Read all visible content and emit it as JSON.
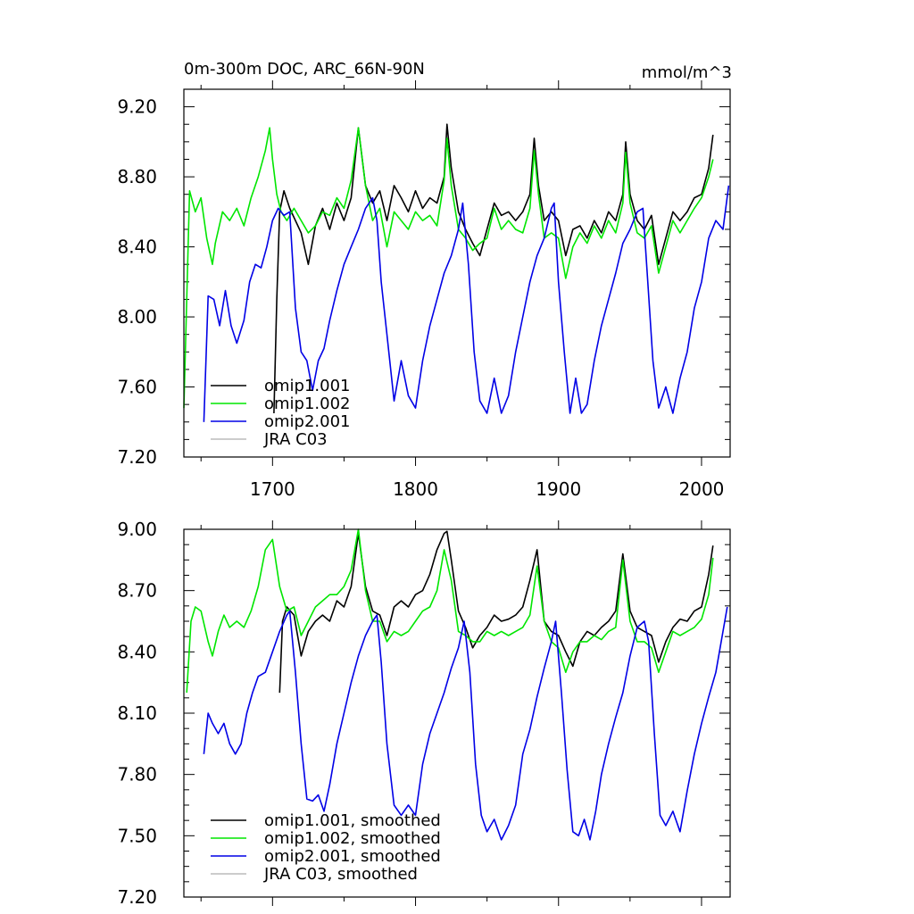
{
  "chart_data": [
    {
      "type": "line",
      "title": "0m-300m DOC, ARC_66N-90N",
      "units": "mmol/m^3",
      "xlabel": "",
      "ylabel": "",
      "xlim": [
        1638,
        2020
      ],
      "ylim": [
        7.2,
        9.3
      ],
      "xticks": [
        "1700",
        "1800",
        "1900",
        "2000"
      ],
      "yticks": [
        "7.20",
        "7.60",
        "8.00",
        "8.40",
        "8.80",
        "9.20"
      ],
      "legend_position": "bottom-left",
      "series": [
        {
          "name": "omip1.001",
          "color": "#000000",
          "x": [
            1701,
            1703,
            1705,
            1708,
            1712,
            1716,
            1720,
            1725,
            1730,
            1735,
            1740,
            1745,
            1750,
            1755,
            1760,
            1765,
            1770,
            1775,
            1780,
            1785,
            1790,
            1795,
            1800,
            1805,
            1810,
            1815,
            1820,
            1822,
            1825,
            1830,
            1835,
            1840,
            1845,
            1850,
            1855,
            1860,
            1865,
            1870,
            1875,
            1880,
            1883,
            1886,
            1890,
            1895,
            1900,
            1905,
            1910,
            1915,
            1920,
            1925,
            1930,
            1935,
            1940,
            1945,
            1947,
            1950,
            1955,
            1960,
            1965,
            1970,
            1975,
            1980,
            1985,
            1990,
            1995,
            2000,
            2005,
            2008
          ],
          "values": [
            7.45,
            8.1,
            8.6,
            8.72,
            8.62,
            8.55,
            8.48,
            8.3,
            8.52,
            8.62,
            8.5,
            8.65,
            8.55,
            8.68,
            9.08,
            8.75,
            8.65,
            8.72,
            8.55,
            8.75,
            8.68,
            8.6,
            8.72,
            8.62,
            8.68,
            8.65,
            8.8,
            9.1,
            8.85,
            8.6,
            8.5,
            8.42,
            8.35,
            8.5,
            8.65,
            8.58,
            8.6,
            8.55,
            8.6,
            8.7,
            9.02,
            8.75,
            8.55,
            8.6,
            8.55,
            8.35,
            8.5,
            8.52,
            8.45,
            8.55,
            8.48,
            8.6,
            8.55,
            8.7,
            9.0,
            8.7,
            8.55,
            8.5,
            8.58,
            8.3,
            8.45,
            8.6,
            8.55,
            8.6,
            8.68,
            8.7,
            8.85,
            9.04
          ]
        },
        {
          "name": "omip1.002",
          "color": "#00e600",
          "x": [
            1638,
            1642,
            1646,
            1650,
            1654,
            1658,
            1660,
            1665,
            1670,
            1675,
            1680,
            1685,
            1690,
            1695,
            1698,
            1700,
            1703,
            1706,
            1710,
            1715,
            1720,
            1725,
            1730,
            1735,
            1740,
            1745,
            1750,
            1755,
            1760,
            1765,
            1770,
            1775,
            1780,
            1785,
            1790,
            1795,
            1800,
            1805,
            1810,
            1815,
            1820,
            1822,
            1825,
            1830,
            1835,
            1840,
            1845,
            1850,
            1855,
            1860,
            1865,
            1870,
            1875,
            1880,
            1883,
            1886,
            1890,
            1895,
            1900,
            1905,
            1910,
            1915,
            1920,
            1925,
            1930,
            1935,
            1940,
            1945,
            1947,
            1950,
            1955,
            1960,
            1965,
            1970,
            1975,
            1980,
            1985,
            1990,
            1995,
            2000,
            2005,
            2008
          ],
          "values": [
            7.48,
            8.72,
            8.6,
            8.68,
            8.45,
            8.3,
            8.42,
            8.6,
            8.55,
            8.62,
            8.52,
            8.68,
            8.8,
            8.95,
            9.08,
            8.9,
            8.7,
            8.6,
            8.55,
            8.62,
            8.55,
            8.48,
            8.52,
            8.6,
            8.58,
            8.68,
            8.62,
            8.78,
            9.08,
            8.75,
            8.55,
            8.62,
            8.4,
            8.6,
            8.55,
            8.5,
            8.6,
            8.55,
            8.58,
            8.52,
            8.78,
            9.02,
            8.75,
            8.5,
            8.45,
            8.38,
            8.42,
            8.45,
            8.62,
            8.5,
            8.55,
            8.5,
            8.48,
            8.62,
            8.95,
            8.7,
            8.45,
            8.48,
            8.45,
            8.22,
            8.4,
            8.48,
            8.42,
            8.52,
            8.45,
            8.55,
            8.48,
            8.65,
            8.94,
            8.65,
            8.48,
            8.45,
            8.52,
            8.25,
            8.4,
            8.55,
            8.48,
            8.55,
            8.62,
            8.68,
            8.8,
            8.9
          ]
        },
        {
          "name": "omip2.001",
          "color": "#0000e6",
          "x": [
            1652,
            1655,
            1659,
            1663,
            1667,
            1671,
            1675,
            1680,
            1684,
            1688,
            1692,
            1696,
            1700,
            1704,
            1708,
            1712,
            1716,
            1720,
            1724,
            1728,
            1732,
            1736,
            1740,
            1745,
            1750,
            1755,
            1760,
            1765,
            1770,
            1773,
            1776,
            1780,
            1785,
            1790,
            1795,
            1800,
            1805,
            1810,
            1815,
            1820,
            1825,
            1830,
            1833,
            1837,
            1841,
            1845,
            1850,
            1855,
            1860,
            1865,
            1870,
            1875,
            1880,
            1885,
            1890,
            1895,
            1897,
            1900,
            1904,
            1908,
            1912,
            1916,
            1920,
            1925,
            1930,
            1935,
            1940,
            1945,
            1950,
            1955,
            1959,
            1962,
            1966,
            1970,
            1975,
            1980,
            1985,
            1990,
            1995,
            2000,
            2005,
            2010,
            2015,
            2019
          ],
          "values": [
            7.4,
            8.12,
            8.1,
            7.95,
            8.15,
            7.95,
            7.85,
            7.98,
            8.2,
            8.3,
            8.28,
            8.4,
            8.55,
            8.62,
            8.58,
            8.6,
            8.05,
            7.8,
            7.75,
            7.58,
            7.75,
            7.82,
            7.98,
            8.15,
            8.3,
            8.4,
            8.5,
            8.62,
            8.68,
            8.55,
            8.2,
            7.9,
            7.52,
            7.75,
            7.55,
            7.48,
            7.75,
            7.95,
            8.1,
            8.25,
            8.35,
            8.5,
            8.65,
            8.3,
            7.8,
            7.52,
            7.45,
            7.65,
            7.45,
            7.55,
            7.8,
            8.0,
            8.2,
            8.35,
            8.45,
            8.62,
            8.65,
            8.2,
            7.8,
            7.45,
            7.65,
            7.45,
            7.5,
            7.75,
            7.95,
            8.1,
            8.25,
            8.42,
            8.5,
            8.6,
            8.62,
            8.25,
            7.75,
            7.48,
            7.6,
            7.45,
            7.65,
            7.8,
            8.05,
            8.2,
            8.45,
            8.55,
            8.5,
            8.75
          ]
        },
        {
          "name": "JRA C03",
          "color": "#bbbbbb",
          "x": [],
          "values": []
        }
      ]
    },
    {
      "type": "line",
      "title": "",
      "xlabel": "",
      "ylabel": "",
      "xlim": [
        1638,
        2020
      ],
      "ylim": [
        7.2,
        9.0
      ],
      "xticks": [],
      "yticks": [
        "7.20",
        "7.50",
        "7.80",
        "8.10",
        "8.40",
        "8.70",
        "9.00"
      ],
      "legend_position": "bottom-left",
      "series": [
        {
          "name": "omip1.001, smoothed",
          "color": "#000000",
          "x": [
            1705,
            1707,
            1710,
            1715,
            1720,
            1725,
            1730,
            1735,
            1740,
            1745,
            1750,
            1755,
            1760,
            1765,
            1770,
            1775,
            1780,
            1785,
            1790,
            1795,
            1800,
            1805,
            1810,
            1815,
            1820,
            1822,
            1825,
            1830,
            1835,
            1840,
            1845,
            1850,
            1855,
            1860,
            1865,
            1870,
            1875,
            1880,
            1885,
            1890,
            1895,
            1900,
            1905,
            1910,
            1915,
            1920,
            1925,
            1930,
            1935,
            1940,
            1945,
            1950,
            1955,
            1960,
            1965,
            1970,
            1975,
            1980,
            1985,
            1990,
            1995,
            2000,
            2005,
            2008
          ],
          "values": [
            8.2,
            8.55,
            8.62,
            8.58,
            8.38,
            8.5,
            8.55,
            8.58,
            8.55,
            8.65,
            8.62,
            8.72,
            8.98,
            8.72,
            8.6,
            8.58,
            8.48,
            8.62,
            8.65,
            8.62,
            8.68,
            8.7,
            8.78,
            8.9,
            8.98,
            8.99,
            8.85,
            8.6,
            8.52,
            8.42,
            8.48,
            8.52,
            8.58,
            8.55,
            8.56,
            8.58,
            8.62,
            8.75,
            8.9,
            8.55,
            8.5,
            8.48,
            8.4,
            8.33,
            8.45,
            8.5,
            8.48,
            8.52,
            8.55,
            8.6,
            8.88,
            8.6,
            8.52,
            8.5,
            8.48,
            8.35,
            8.45,
            8.52,
            8.56,
            8.55,
            8.6,
            8.62,
            8.78,
            8.92
          ]
        },
        {
          "name": "omip1.002, smoothed",
          "color": "#00e600",
          "x": [
            1640,
            1643,
            1646,
            1650,
            1655,
            1658,
            1662,
            1666,
            1670,
            1675,
            1680,
            1685,
            1690,
            1695,
            1700,
            1705,
            1710,
            1715,
            1720,
            1725,
            1730,
            1735,
            1740,
            1745,
            1750,
            1755,
            1760,
            1765,
            1770,
            1775,
            1780,
            1785,
            1790,
            1795,
            1800,
            1805,
            1810,
            1815,
            1820,
            1825,
            1830,
            1835,
            1840,
            1845,
            1850,
            1855,
            1860,
            1865,
            1870,
            1875,
            1880,
            1885,
            1890,
            1895,
            1900,
            1905,
            1910,
            1915,
            1920,
            1925,
            1930,
            1935,
            1940,
            1945,
            1950,
            1955,
            1960,
            1965,
            1970,
            1975,
            1980,
            1985,
            1990,
            1995,
            2000,
            2005,
            2008
          ],
          "values": [
            8.2,
            8.55,
            8.62,
            8.6,
            8.45,
            8.38,
            8.5,
            8.58,
            8.52,
            8.55,
            8.52,
            8.6,
            8.72,
            8.9,
            8.95,
            8.72,
            8.6,
            8.62,
            8.48,
            8.55,
            8.62,
            8.65,
            8.68,
            8.68,
            8.72,
            8.8,
            9.0,
            8.7,
            8.55,
            8.55,
            8.45,
            8.5,
            8.48,
            8.5,
            8.55,
            8.6,
            8.62,
            8.7,
            8.9,
            8.75,
            8.5,
            8.48,
            8.45,
            8.45,
            8.5,
            8.48,
            8.5,
            8.48,
            8.5,
            8.52,
            8.58,
            8.82,
            8.55,
            8.45,
            8.42,
            8.3,
            8.4,
            8.45,
            8.45,
            8.48,
            8.46,
            8.5,
            8.52,
            8.85,
            8.55,
            8.45,
            8.45,
            8.42,
            8.3,
            8.4,
            8.5,
            8.48,
            8.5,
            8.52,
            8.56,
            8.68,
            8.86
          ]
        },
        {
          "name": "omip2.001, smoothed",
          "color": "#0000e6",
          "x": [
            1652,
            1655,
            1658,
            1662,
            1666,
            1670,
            1674,
            1678,
            1682,
            1686,
            1690,
            1695,
            1700,
            1705,
            1710,
            1712,
            1716,
            1720,
            1724,
            1728,
            1732,
            1736,
            1740,
            1745,
            1750,
            1755,
            1760,
            1765,
            1770,
            1773,
            1776,
            1780,
            1785,
            1790,
            1795,
            1800,
            1805,
            1810,
            1815,
            1820,
            1825,
            1830,
            1834,
            1838,
            1842,
            1846,
            1850,
            1855,
            1860,
            1865,
            1870,
            1875,
            1880,
            1885,
            1890,
            1895,
            1898,
            1902,
            1906,
            1910,
            1914,
            1918,
            1922,
            1926,
            1930,
            1935,
            1940,
            1945,
            1950,
            1955,
            1960,
            1963,
            1967,
            1971,
            1975,
            1980,
            1985,
            1990,
            1995,
            2000,
            2005,
            2010,
            2015,
            2018
          ],
          "values": [
            7.9,
            8.1,
            8.05,
            8.0,
            8.05,
            7.95,
            7.9,
            7.95,
            8.1,
            8.2,
            8.28,
            8.3,
            8.4,
            8.5,
            8.58,
            8.6,
            8.3,
            7.95,
            7.68,
            7.67,
            7.7,
            7.62,
            7.75,
            7.95,
            8.1,
            8.25,
            8.38,
            8.48,
            8.55,
            8.58,
            8.35,
            7.95,
            7.65,
            7.6,
            7.65,
            7.6,
            7.85,
            8.0,
            8.1,
            8.2,
            8.32,
            8.42,
            8.55,
            8.3,
            7.85,
            7.6,
            7.52,
            7.58,
            7.48,
            7.55,
            7.65,
            7.9,
            8.02,
            8.18,
            8.32,
            8.45,
            8.55,
            8.2,
            7.82,
            7.52,
            7.5,
            7.58,
            7.48,
            7.62,
            7.8,
            7.95,
            8.08,
            8.2,
            8.38,
            8.52,
            8.55,
            8.45,
            8.0,
            7.6,
            7.55,
            7.62,
            7.52,
            7.72,
            7.9,
            8.05,
            8.18,
            8.3,
            8.5,
            8.62
          ]
        },
        {
          "name": "JRA C03, smoothed",
          "color": "#bbbbbb",
          "x": [],
          "values": []
        }
      ]
    }
  ]
}
